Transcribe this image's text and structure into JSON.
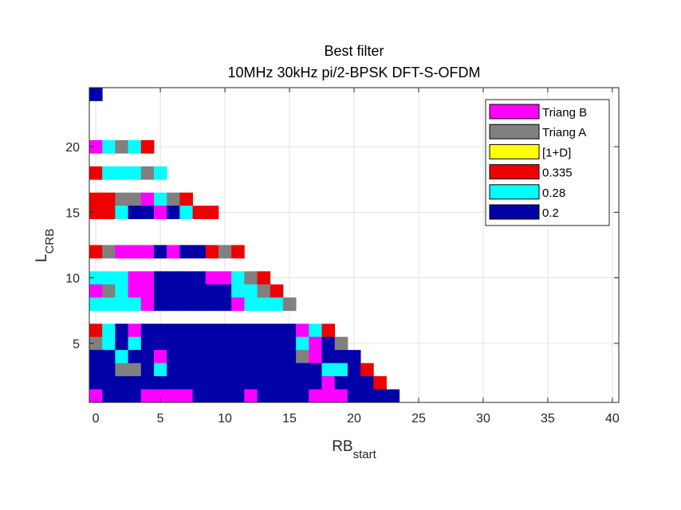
{
  "chart_data": {
    "type": "heatmap",
    "title": "Best filter",
    "subtitle": "10MHz 30kHz pi/2-BPSK DFT-S-OFDM",
    "xlabel": {
      "main": "RB",
      "sub": "start"
    },
    "ylabel": {
      "main": "L",
      "sub": "CRB"
    },
    "xlim": [
      -0.5,
      40.5
    ],
    "ylim": [
      0.5,
      24.5
    ],
    "xticks": [
      "0",
      "5",
      "10",
      "15",
      "20",
      "25",
      "30",
      "35",
      "40"
    ],
    "yticks": [
      "5",
      "10",
      "15",
      "20"
    ],
    "grid": true,
    "legend_position": "top-right",
    "legend": [
      {
        "label": "Triang B",
        "key": "B",
        "color": "#ff00ff"
      },
      {
        "label": "Triang A",
        "key": "A",
        "color": "#808080"
      },
      {
        "label": "[1+D]",
        "key": "D",
        "color": "#ffff00"
      },
      {
        "label": "0.335",
        "key": "R",
        "color": "#ee0000"
      },
      {
        "label": "0.28",
        "key": "C",
        "color": "#00ffff"
      },
      {
        "label": "0.2",
        "key": "N",
        "color": "#0000a8"
      }
    ],
    "rows": [
      {
        "L": 24,
        "cells": "N"
      },
      {
        "L": 20,
        "cells": "BCACR"
      },
      {
        "L": 18,
        "cells": "RCCCAC"
      },
      {
        "L": 16,
        "cells": "RRAABCAR"
      },
      {
        "L": 15,
        "cells": "RRCNNBNCRR"
      },
      {
        "L": 12,
        "cells": "RABBBNBNNRAR"
      },
      {
        "L": 10,
        "cells": "CCCBBNNNNBBCAR"
      },
      {
        "L": 9,
        "cells": "BACBBNNNNNNCCAR"
      },
      {
        "L": 8,
        "cells": "CCCCBNNNNNNBCCCA"
      },
      {
        "L": 6,
        "cells": "RCNBNNNNNNNNNNNNBCR"
      },
      {
        "L": 5,
        "cells": "ACNCNNNNNNNNNNNNCBNA"
      },
      {
        "L": 4,
        "cells": "NNCNNBNNNNNNNNNNABNNN"
      },
      {
        "L": 3,
        "cells": "NNAANCNNNNNNNNNNNNCCNR"
      },
      {
        "L": 2,
        "cells": "NNNNNNNNNNNNNNNNNNBNNNR"
      },
      {
        "L": 1,
        "cells": "BNNNBBBBNNNNBNNNNBBBNNNN"
      }
    ]
  }
}
